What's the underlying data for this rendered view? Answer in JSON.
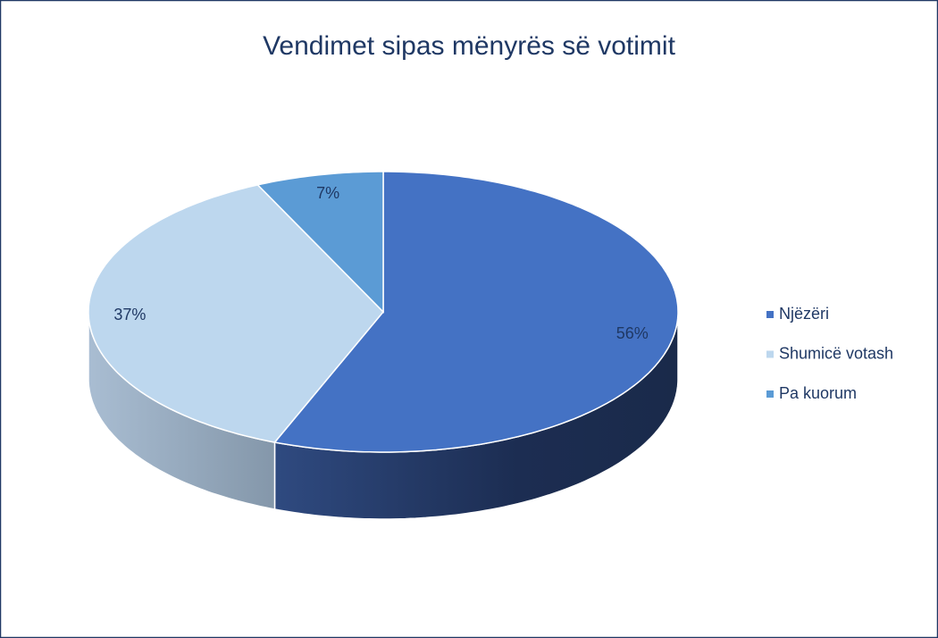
{
  "chart_data": {
    "type": "pie",
    "title": "Vendimet sipas mënyrës së votimit",
    "categories": [
      "Njëzëri",
      "Shumicë votash",
      "Pa kuorum"
    ],
    "values": [
      56,
      37,
      7
    ],
    "value_labels": [
      "56%",
      "37%",
      "7%"
    ],
    "colors": [
      "#4472c4",
      "#bdd7ee",
      "#5b9bd5"
    ],
    "legend": "right"
  }
}
